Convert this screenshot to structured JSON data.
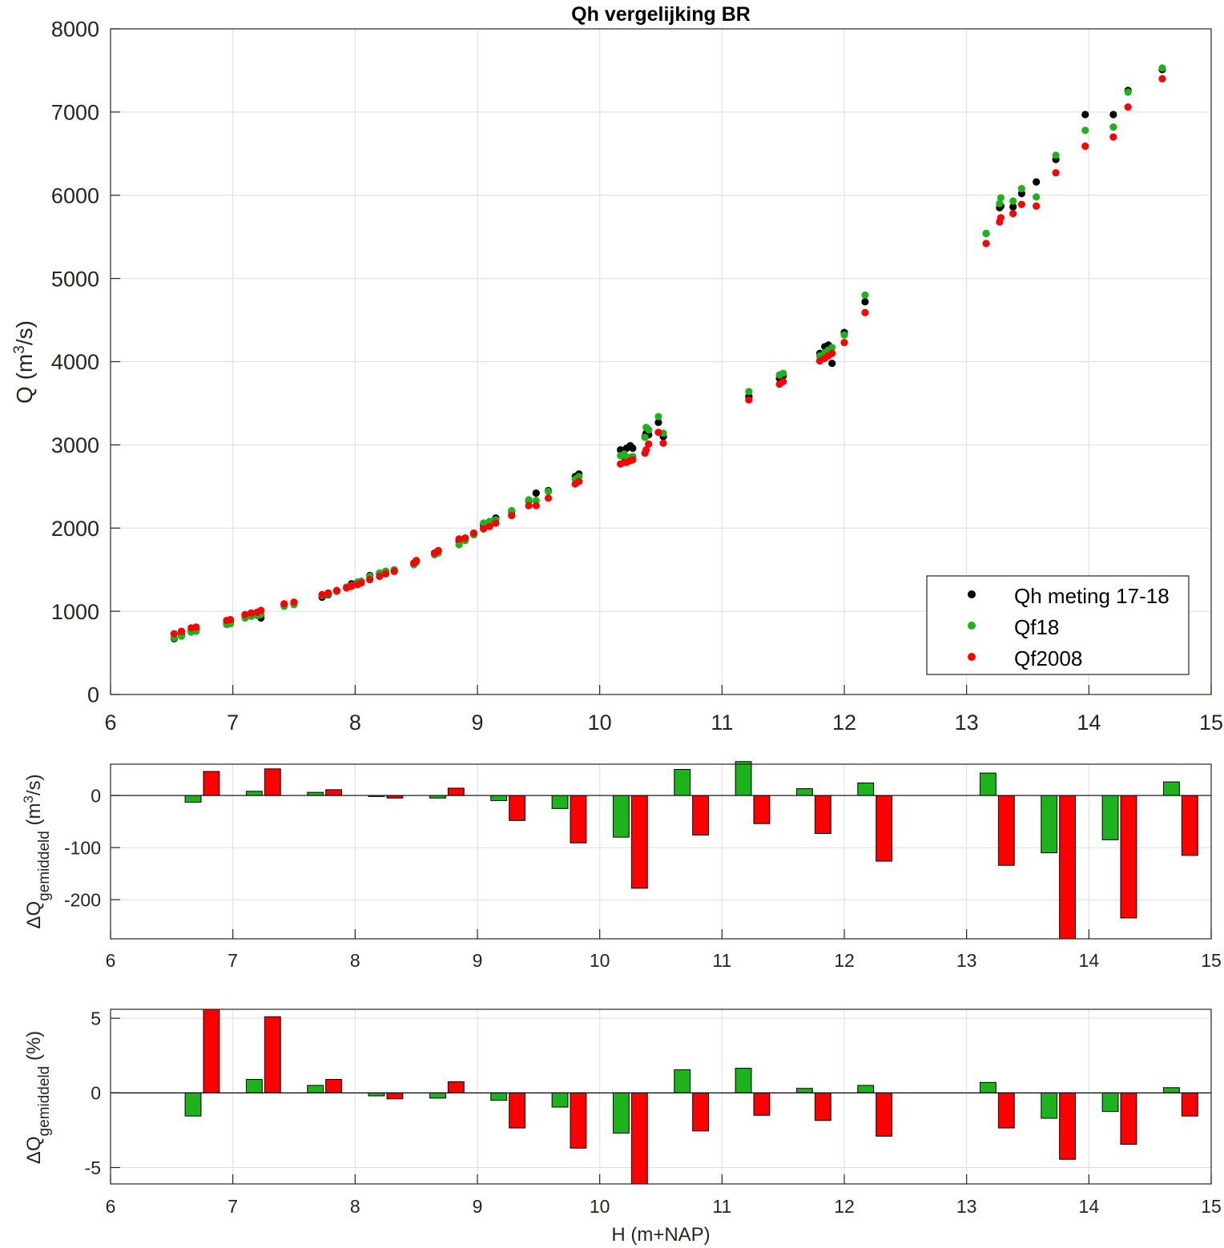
{
  "colors": {
    "measurement": "#000000",
    "qf18": "#1db31d",
    "qf2008": "#ff0000",
    "grid": "#dedede",
    "axis": "#26261f"
  },
  "chart_data": [
    {
      "type": "scatter",
      "title": "Qh vergelijking BR",
      "xlabel": "",
      "ylabel_main": "Q (m",
      "ylabel_sup": "3",
      "ylabel_tail": "/s)",
      "xlim": [
        6,
        15
      ],
      "ylim": [
        0,
        8000
      ],
      "x_ticks": [
        "6",
        "7",
        "8",
        "9",
        "10",
        "11",
        "12",
        "13",
        "14",
        "15"
      ],
      "y_ticks": [
        "0",
        "1000",
        "2000",
        "3000",
        "4000",
        "5000",
        "6000",
        "7000",
        "8000"
      ],
      "grid": true,
      "legend_position": "bottom-right",
      "legend": [
        "Qh meting 17-18",
        "Qf18",
        "Qf2008"
      ],
      "series": [
        {
          "name": "Qh meting 17-18",
          "points": [
            [
              6.52,
              670
            ],
            [
              6.58,
              720
            ],
            [
              6.66,
              760
            ],
            [
              6.7,
              780
            ],
            [
              6.95,
              850
            ],
            [
              6.98,
              870
            ],
            [
              7.1,
              930
            ],
            [
              7.15,
              950
            ],
            [
              7.2,
              960
            ],
            [
              7.23,
              920
            ],
            [
              7.42,
              1080
            ],
            [
              7.5,
              1100
            ],
            [
              7.73,
              1170
            ],
            [
              7.78,
              1200
            ],
            [
              7.85,
              1240
            ],
            [
              7.93,
              1290
            ],
            [
              7.97,
              1330
            ],
            [
              8.02,
              1350
            ],
            [
              8.05,
              1360
            ],
            [
              8.12,
              1430
            ],
            [
              8.2,
              1450
            ],
            [
              8.25,
              1480
            ],
            [
              8.32,
              1480
            ],
            [
              8.48,
              1570
            ],
            [
              8.5,
              1590
            ],
            [
              8.65,
              1700
            ],
            [
              8.68,
              1720
            ],
            [
              8.85,
              1840
            ],
            [
              8.9,
              1880
            ],
            [
              8.97,
              1930
            ],
            [
              9.05,
              2030
            ],
            [
              9.1,
              2060
            ],
            [
              9.15,
              2120
            ],
            [
              9.28,
              2200
            ],
            [
              9.42,
              2330
            ],
            [
              9.48,
              2420
            ],
            [
              9.58,
              2450
            ],
            [
              9.8,
              2620
            ],
            [
              9.83,
              2650
            ],
            [
              10.17,
              2940
            ],
            [
              10.2,
              2860
            ],
            [
              10.22,
              2960
            ],
            [
              10.25,
              2990
            ],
            [
              10.27,
              2960
            ],
            [
              10.37,
              3100
            ],
            [
              10.38,
              3140
            ],
            [
              10.4,
              3120
            ],
            [
              10.48,
              3270
            ],
            [
              10.52,
              3100
            ],
            [
              11.22,
              3580
            ],
            [
              11.47,
              3800
            ],
            [
              11.5,
              3830
            ],
            [
              11.8,
              4100
            ],
            [
              11.84,
              4180
            ],
            [
              11.87,
              4200
            ],
            [
              11.9,
              3980
            ],
            [
              12.0,
              4350
            ],
            [
              12.17,
              4720
            ],
            [
              13.16,
              5540
            ],
            [
              13.27,
              5850
            ],
            [
              13.28,
              5870
            ],
            [
              13.38,
              5860
            ],
            [
              13.45,
              6020
            ],
            [
              13.57,
              6160
            ],
            [
              13.73,
              6430
            ],
            [
              13.97,
              6970
            ],
            [
              14.2,
              6970
            ],
            [
              14.32,
              7260
            ],
            [
              14.6,
              7510
            ]
          ]
        },
        {
          "name": "Qf18",
          "points": [
            [
              6.52,
              680
            ],
            [
              6.58,
              700
            ],
            [
              6.66,
              750
            ],
            [
              6.7,
              760
            ],
            [
              6.95,
              840
            ],
            [
              6.98,
              850
            ],
            [
              7.1,
              920
            ],
            [
              7.15,
              940
            ],
            [
              7.2,
              950
            ],
            [
              7.23,
              960
            ],
            [
              7.42,
              1060
            ],
            [
              7.5,
              1080
            ],
            [
              7.73,
              1190
            ],
            [
              7.78,
              1210
            ],
            [
              7.85,
              1240
            ],
            [
              7.93,
              1290
            ],
            [
              7.97,
              1310
            ],
            [
              8.02,
              1350
            ],
            [
              8.05,
              1360
            ],
            [
              8.12,
              1420
            ],
            [
              8.2,
              1460
            ],
            [
              8.25,
              1480
            ],
            [
              8.32,
              1500
            ],
            [
              8.48,
              1560
            ],
            [
              8.5,
              1590
            ],
            [
              8.65,
              1680
            ],
            [
              8.68,
              1700
            ],
            [
              8.85,
              1800
            ],
            [
              8.9,
              1850
            ],
            [
              8.97,
              1920
            ],
            [
              9.05,
              2060
            ],
            [
              9.1,
              2080
            ],
            [
              9.15,
              2100
            ],
            [
              9.28,
              2210
            ],
            [
              9.42,
              2340
            ],
            [
              9.48,
              2330
            ],
            [
              9.58,
              2440
            ],
            [
              9.8,
              2590
            ],
            [
              9.83,
              2620
            ],
            [
              10.17,
              2870
            ],
            [
              10.2,
              2890
            ],
            [
              10.22,
              2830
            ],
            [
              10.25,
              2850
            ],
            [
              10.27,
              2860
            ],
            [
              10.37,
              3090
            ],
            [
              10.38,
              3210
            ],
            [
              10.4,
              3180
            ],
            [
              10.48,
              3340
            ],
            [
              10.52,
              3140
            ],
            [
              11.22,
              3640
            ],
            [
              11.47,
              3840
            ],
            [
              11.5,
              3860
            ],
            [
              11.8,
              4070
            ],
            [
              11.84,
              4110
            ],
            [
              11.87,
              4140
            ],
            [
              11.9,
              4170
            ],
            [
              12.0,
              4320
            ],
            [
              12.17,
              4800
            ],
            [
              13.16,
              5540
            ],
            [
              13.27,
              5900
            ],
            [
              13.28,
              5970
            ],
            [
              13.38,
              5930
            ],
            [
              13.45,
              6080
            ],
            [
              13.57,
              5980
            ],
            [
              13.73,
              6480
            ],
            [
              13.97,
              6780
            ],
            [
              14.2,
              6820
            ],
            [
              14.32,
              7240
            ],
            [
              14.6,
              7530
            ]
          ]
        },
        {
          "name": "Qf2008",
          "points": [
            [
              6.52,
              730
            ],
            [
              6.58,
              760
            ],
            [
              6.66,
              800
            ],
            [
              6.7,
              810
            ],
            [
              6.95,
              890
            ],
            [
              6.98,
              900
            ],
            [
              7.1,
              960
            ],
            [
              7.15,
              980
            ],
            [
              7.2,
              990
            ],
            [
              7.23,
              1010
            ],
            [
              7.42,
              1090
            ],
            [
              7.5,
              1110
            ],
            [
              7.73,
              1200
            ],
            [
              7.78,
              1220
            ],
            [
              7.85,
              1250
            ],
            [
              7.93,
              1280
            ],
            [
              7.97,
              1300
            ],
            [
              8.02,
              1320
            ],
            [
              8.05,
              1340
            ],
            [
              8.12,
              1380
            ],
            [
              8.2,
              1420
            ],
            [
              8.25,
              1450
            ],
            [
              8.32,
              1480
            ],
            [
              8.48,
              1580
            ],
            [
              8.5,
              1610
            ],
            [
              8.65,
              1700
            ],
            [
              8.68,
              1730
            ],
            [
              8.85,
              1870
            ],
            [
              8.9,
              1880
            ],
            [
              8.97,
              1940
            ],
            [
              9.05,
              1990
            ],
            [
              9.1,
              2020
            ],
            [
              9.15,
              2060
            ],
            [
              9.28,
              2150
            ],
            [
              9.42,
              2270
            ],
            [
              9.48,
              2270
            ],
            [
              9.58,
              2360
            ],
            [
              9.8,
              2530
            ],
            [
              9.83,
              2560
            ],
            [
              10.17,
              2770
            ],
            [
              10.2,
              2790
            ],
            [
              10.22,
              2790
            ],
            [
              10.25,
              2810
            ],
            [
              10.27,
              2820
            ],
            [
              10.37,
              2900
            ],
            [
              10.38,
              2940
            ],
            [
              10.4,
              3010
            ],
            [
              10.48,
              3150
            ],
            [
              10.52,
              3020
            ],
            [
              11.22,
              3540
            ],
            [
              11.47,
              3730
            ],
            [
              11.5,
              3760
            ],
            [
              11.8,
              4010
            ],
            [
              11.84,
              4040
            ],
            [
              11.87,
              4070
            ],
            [
              11.9,
              4100
            ],
            [
              12.0,
              4230
            ],
            [
              12.17,
              4590
            ],
            [
              13.16,
              5420
            ],
            [
              13.27,
              5680
            ],
            [
              13.28,
              5730
            ],
            [
              13.38,
              5780
            ],
            [
              13.45,
              5890
            ],
            [
              13.57,
              5870
            ],
            [
              13.73,
              6270
            ],
            [
              13.97,
              6590
            ],
            [
              14.2,
              6700
            ],
            [
              14.32,
              7060
            ],
            [
              14.6,
              7400
            ]
          ]
        }
      ]
    },
    {
      "type": "bar",
      "ylabel_main": "ΔQ",
      "ylabel_sub": "gemiddeld",
      "ylabel_tail": " (m",
      "ylabel_sup": "3",
      "ylabel_end": "/s)",
      "xlim": [
        6,
        15
      ],
      "ylim": [
        -275,
        60
      ],
      "x_ticks": [
        "6",
        "7",
        "8",
        "9",
        "10",
        "11",
        "12",
        "13",
        "14",
        "15"
      ],
      "y_ticks": [
        {
          "value": 0,
          "label": "0"
        },
        {
          "value": -100,
          "label": "-100"
        },
        {
          "value": -200,
          "label": "-200"
        }
      ],
      "grid": true,
      "series": [
        {
          "name": "Qf18",
          "offset": -0.075,
          "x": [
            6.75,
            7.25,
            7.75,
            8.25,
            8.75,
            9.25,
            9.75,
            10.25,
            10.75,
            11.25,
            11.75,
            12.25,
            13.25,
            13.75,
            14.25,
            14.75
          ],
          "values": [
            -13,
            8,
            6,
            -2,
            -5,
            -10,
            -25,
            -80,
            50,
            65,
            13,
            24,
            43,
            -110,
            -85,
            26
          ]
        },
        {
          "name": "Qf2008",
          "offset": 0.075,
          "x": [
            6.75,
            7.25,
            7.75,
            8.25,
            8.75,
            9.25,
            9.75,
            10.25,
            10.75,
            11.25,
            11.75,
            12.25,
            13.25,
            13.75,
            14.25,
            14.75
          ],
          "values": [
            46,
            51,
            11,
            -5,
            14,
            -48,
            -91,
            -178,
            -76,
            -54,
            -73,
            -126,
            -134,
            -275,
            -235,
            -115
          ]
        }
      ]
    },
    {
      "type": "bar",
      "xlabel": "H (m+NAP)",
      "ylabel_main": "ΔQ",
      "ylabel_sub": "gemiddeld",
      "ylabel_tail": " (%)",
      "xlim": [
        6,
        15
      ],
      "ylim": [
        -6.1,
        5.6
      ],
      "x_ticks": [
        "6",
        "7",
        "8",
        "9",
        "10",
        "11",
        "12",
        "13",
        "14",
        "15"
      ],
      "y_ticks": [
        {
          "value": 5,
          "label": "5"
        },
        {
          "value": 0,
          "label": "0"
        },
        {
          "value": -5,
          "label": "-5"
        }
      ],
      "grid": true,
      "series": [
        {
          "name": "Qf18",
          "offset": -0.075,
          "x": [
            6.75,
            7.25,
            7.75,
            8.25,
            8.75,
            9.25,
            9.75,
            10.25,
            10.75,
            11.25,
            11.75,
            12.25,
            13.25,
            13.75,
            14.25,
            14.75
          ],
          "values": [
            -1.55,
            0.9,
            0.5,
            -0.2,
            -0.35,
            -0.5,
            -0.95,
            -2.7,
            1.55,
            1.65,
            0.3,
            0.5,
            0.7,
            -1.7,
            -1.25,
            0.35
          ]
        },
        {
          "name": "Qf2008",
          "offset": 0.075,
          "x": [
            6.75,
            7.25,
            7.75,
            8.25,
            8.75,
            9.25,
            9.75,
            10.25,
            10.75,
            11.25,
            11.75,
            12.25,
            13.25,
            13.75,
            14.25,
            14.75
          ],
          "values": [
            5.6,
            5.1,
            0.9,
            -0.4,
            0.75,
            -2.35,
            -3.7,
            -6.1,
            -2.55,
            -1.5,
            -1.85,
            -2.9,
            -2.35,
            -4.45,
            -3.45,
            -1.55
          ]
        }
      ]
    }
  ]
}
